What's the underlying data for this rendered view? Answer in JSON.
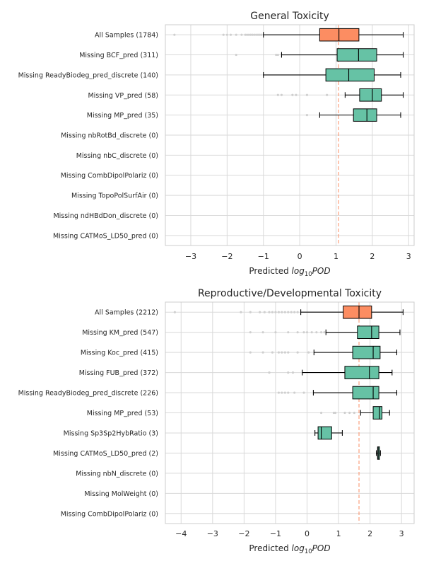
{
  "chart_data": [
    {
      "type": "boxplot",
      "title": "General Toxicity",
      "xlabel_prefix": "Predicted ",
      "xlabel_base": "log",
      "xlabel_sub": "10",
      "xlabel_suffix": "POD",
      "xlim": [
        -3.7,
        3.15
      ],
      "xticks": [
        -3,
        -2,
        -1,
        0,
        1,
        2,
        3
      ],
      "xtick_labels": [
        "−3",
        "−2",
        "−1",
        "0",
        "1",
        "2",
        "3"
      ],
      "reference_line": 1.07,
      "colors": {
        "all": "#fc8d62",
        "missing": "#66c2a5",
        "ref": "#fc8d62"
      },
      "categories": [
        "All Samples (1784)",
        "Missing BCF_pred (311)",
        "Missing ReadyBiodeg_pred_discrete (140)",
        "Missing VP_pred (58)",
        "Missing MP_pred (35)",
        "Missing nbRotBd_discrete (0)",
        "Missing nbC_discrete (0)",
        "Missing CombDipolPolariz (0)",
        "Missing TopoPolSurfAir (0)",
        "Missing ndHBdDon_discrete (0)",
        "Missing CATMoS_LD50_pred (0)"
      ],
      "boxes": [
        {
          "min": -1.0,
          "q1": 0.55,
          "median": 1.08,
          "q3": 1.63,
          "max": 2.85,
          "fliers": [
            -3.45,
            -2.1,
            -2.0,
            -1.9,
            -1.75,
            -1.6,
            -1.5,
            -1.45,
            -1.4,
            -1.35,
            -1.3,
            -1.25,
            -1.2,
            -1.15,
            -1.1,
            -1.05
          ]
        },
        {
          "min": -0.5,
          "q1": 1.03,
          "median": 1.62,
          "q3": 2.12,
          "max": 2.85,
          "fliers": [
            -1.75,
            -0.65,
            -0.6
          ]
        },
        {
          "min": -1.0,
          "q1": 0.72,
          "median": 1.35,
          "q3": 2.05,
          "max": 2.78,
          "fliers": []
        },
        {
          "min": 1.25,
          "q1": 1.65,
          "median": 2.0,
          "q3": 2.25,
          "max": 2.85,
          "fliers": [
            -0.6,
            -0.5,
            -0.2,
            -0.1,
            0.2,
            0.75
          ]
        },
        {
          "min": 0.55,
          "q1": 1.48,
          "median": 1.85,
          "q3": 2.12,
          "max": 2.78,
          "fliers": [
            0.2
          ]
        },
        null,
        null,
        null,
        null,
        null,
        null
      ]
    },
    {
      "type": "boxplot",
      "title": "Reproductive/Developmental Toxicity",
      "xlabel_prefix": "Predicted ",
      "xlabel_base": "log",
      "xlabel_sub": "10",
      "xlabel_suffix": "POD",
      "xlim": [
        -4.5,
        3.4
      ],
      "xticks": [
        -4,
        -3,
        -2,
        -1,
        0,
        1,
        2,
        3
      ],
      "xtick_labels": [
        "−4",
        "−3",
        "−2",
        "−1",
        "0",
        "1",
        "2",
        "3"
      ],
      "reference_line": 1.65,
      "colors": {
        "all": "#fc8d62",
        "missing": "#66c2a5",
        "ref": "#fc8d62"
      },
      "categories": [
        "All Samples (2212)",
        "Missing KM_pred (547)",
        "Missing Koc_pred (415)",
        "Missing FUB_pred (372)",
        "Missing ReadyBiodeg_pred_discrete (226)",
        "Missing MP_pred (53)",
        "Missing Sp3Sp2HybRatio (3)",
        "Missing CATMoS_LD50_pred (2)",
        "Missing nbN_discrete (0)",
        "Missing MolWeight (0)",
        "Missing CombDipolPolariz (0)"
      ],
      "boxes": [
        {
          "min": -0.2,
          "q1": 1.15,
          "median": 1.65,
          "q3": 2.05,
          "max": 3.05,
          "fliers": [
            -4.2,
            -2.1,
            -1.8,
            -1.5,
            -1.35,
            -1.2,
            -1.1,
            -1.0,
            -0.9,
            -0.8,
            -0.7,
            -0.6,
            -0.5,
            -0.4,
            -0.3
          ]
        },
        {
          "min": 0.6,
          "q1": 1.6,
          "median": 2.05,
          "q3": 2.28,
          "max": 2.95,
          "fliers": [
            -1.8,
            -1.4,
            -1.0,
            -0.6,
            -0.3,
            -0.1,
            0.0,
            0.15,
            0.3,
            0.45,
            0.55
          ]
        },
        {
          "min": 0.22,
          "q1": 1.45,
          "median": 2.1,
          "q3": 2.32,
          "max": 2.85,
          "fliers": [
            -1.8,
            -1.4,
            -1.1,
            -0.9,
            -0.8,
            -0.7,
            -0.6,
            -0.3,
            0.05
          ]
        },
        {
          "min": -0.15,
          "q1": 1.2,
          "median": 1.98,
          "q3": 2.28,
          "max": 2.7,
          "fliers": [
            -1.2,
            -0.6,
            -0.45
          ]
        },
        {
          "min": 0.2,
          "q1": 1.45,
          "median": 2.1,
          "q3": 2.28,
          "max": 2.85,
          "fliers": [
            -0.9,
            -0.8,
            -0.7,
            -0.6,
            -0.4,
            -0.1
          ]
        },
        {
          "min": 1.7,
          "q1": 2.1,
          "median": 2.3,
          "q3": 2.38,
          "max": 2.62,
          "fliers": [
            0.45,
            0.85,
            0.9,
            1.2,
            1.35,
            1.5
          ]
        },
        {
          "min": 0.25,
          "q1": 0.35,
          "median": 0.45,
          "q3": 0.78,
          "max": 1.12,
          "fliers": []
        },
        {
          "min": 2.2,
          "q1": 2.24,
          "median": 2.26,
          "q3": 2.3,
          "max": 2.33,
          "fliers": []
        },
        null,
        null,
        null
      ]
    }
  ]
}
